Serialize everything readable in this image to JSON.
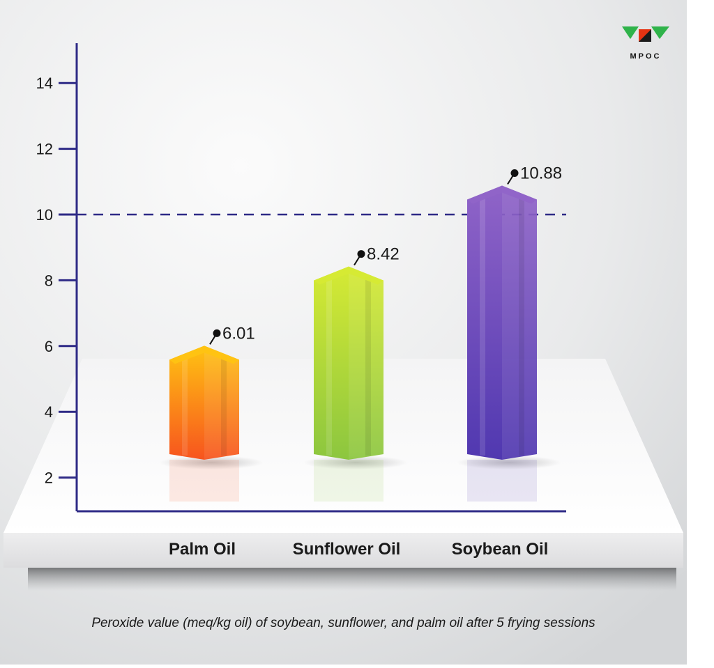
{
  "logo": {
    "text": "MPOC",
    "colors": [
      "#2fb34a",
      "#e63312",
      "#1a1a1a"
    ]
  },
  "caption": "Peroxide value (meq/kg oil) of soybean, sunflower, and palm oil after 5 frying sessions",
  "chart_data": {
    "type": "bar",
    "title": "",
    "xlabel": "",
    "ylabel": "",
    "categories": [
      "Palm Oil",
      "Sunflower Oil",
      "Soybean Oil"
    ],
    "values": [
      6.01,
      8.42,
      10.88
    ],
    "value_labels": [
      "6.01",
      "8.42",
      "10.88"
    ],
    "yticks": [
      "2",
      "4",
      "6",
      "8",
      "10",
      "12",
      "14"
    ],
    "ytick_values": [
      2,
      4,
      6,
      8,
      10,
      12,
      14
    ],
    "reference_line": 10,
    "legend": "none",
    "grid": false,
    "colors": {
      "palm": {
        "top": "#ffc312",
        "bottom": "#f7541e"
      },
      "sunflower": {
        "top": "#d6ea34",
        "bottom": "#8cc63f"
      },
      "soybean": {
        "top": "#9064c8",
        "bottom": "#5038b0"
      },
      "axis": "#2e2a86"
    }
  }
}
